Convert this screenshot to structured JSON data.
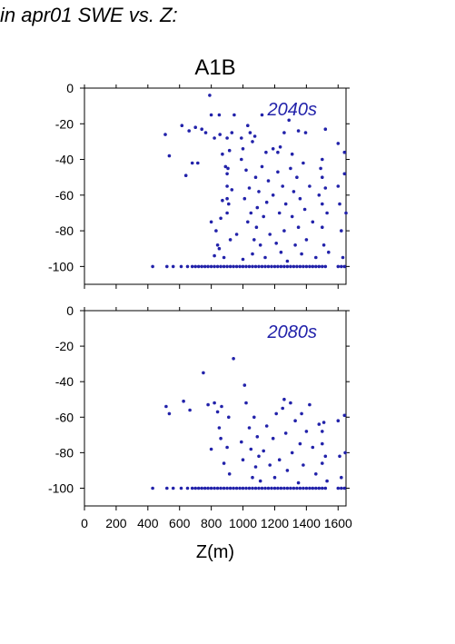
{
  "header": {
    "title": "in apr01 SWE vs. Z:"
  },
  "figure": {
    "scenario": "A1B",
    "xlabel": "Z(m)"
  },
  "colors": {
    "points": "#2222aa",
    "text": "#000000",
    "period": "#2222aa"
  },
  "chart_data": [
    {
      "type": "scatter",
      "title": "A1B",
      "period_label": "2040s",
      "xlabel": "",
      "ylabel": "",
      "xlim": [
        0,
        1650
      ],
      "ylim": [
        -110,
        0
      ],
      "yticks": [
        0,
        -20,
        -40,
        -60,
        -80,
        -100
      ],
      "xticks": [
        0,
        200,
        400,
        600,
        800,
        1000,
        1200,
        1400,
        1600
      ],
      "grid": false,
      "points": [
        [
          430,
          -100
        ],
        [
          520,
          -100
        ],
        [
          560,
          -100
        ],
        [
          610,
          -100
        ],
        [
          650,
          -100
        ],
        [
          680,
          -100
        ],
        [
          700,
          -100
        ],
        [
          720,
          -100
        ],
        [
          740,
          -100
        ],
        [
          760,
          -100
        ],
        [
          780,
          -100
        ],
        [
          800,
          -100
        ],
        [
          820,
          -100
        ],
        [
          840,
          -100
        ],
        [
          860,
          -100
        ],
        [
          880,
          -100
        ],
        [
          900,
          -100
        ],
        [
          920,
          -100
        ],
        [
          940,
          -100
        ],
        [
          960,
          -100
        ],
        [
          980,
          -100
        ],
        [
          1000,
          -100
        ],
        [
          1020,
          -100
        ],
        [
          1040,
          -100
        ],
        [
          1060,
          -100
        ],
        [
          1080,
          -100
        ],
        [
          1100,
          -100
        ],
        [
          1120,
          -100
        ],
        [
          1140,
          -100
        ],
        [
          1160,
          -100
        ],
        [
          1180,
          -100
        ],
        [
          1200,
          -100
        ],
        [
          1220,
          -100
        ],
        [
          1240,
          -100
        ],
        [
          1260,
          -100
        ],
        [
          1280,
          -100
        ],
        [
          1300,
          -100
        ],
        [
          1320,
          -100
        ],
        [
          1340,
          -100
        ],
        [
          1360,
          -100
        ],
        [
          1380,
          -100
        ],
        [
          1400,
          -100
        ],
        [
          1420,
          -100
        ],
        [
          1440,
          -100
        ],
        [
          1460,
          -100
        ],
        [
          1480,
          -100
        ],
        [
          1500,
          -100
        ],
        [
          1520,
          -100
        ],
        [
          1600,
          -100
        ],
        [
          1620,
          -100
        ],
        [
          1640,
          -100
        ],
        [
          510,
          -26
        ],
        [
          535,
          -38
        ],
        [
          615,
          -21
        ],
        [
          640,
          -49
        ],
        [
          660,
          -24
        ],
        [
          680,
          -42
        ],
        [
          700,
          -22
        ],
        [
          715,
          -42
        ],
        [
          740,
          -23
        ],
        [
          765,
          -25
        ],
        [
          790,
          -4
        ],
        [
          800,
          -15
        ],
        [
          820,
          -28
        ],
        [
          850,
          -15
        ],
        [
          855,
          -26
        ],
        [
          870,
          -37
        ],
        [
          900,
          -28
        ],
        [
          915,
          -35
        ],
        [
          930,
          -25
        ],
        [
          945,
          -15
        ],
        [
          990,
          -28
        ],
        [
          1000,
          -34
        ],
        [
          1030,
          -21
        ],
        [
          1045,
          -25
        ],
        [
          1060,
          -30
        ],
        [
          1075,
          -27
        ],
        [
          1120,
          -15
        ],
        [
          1145,
          -36
        ],
        [
          1190,
          -34
        ],
        [
          1220,
          -36
        ],
        [
          1235,
          -33
        ],
        [
          1260,
          -25
        ],
        [
          1290,
          -18
        ],
        [
          1310,
          -37
        ],
        [
          1350,
          -24
        ],
        [
          1395,
          -25
        ],
        [
          1520,
          -23
        ],
        [
          1600,
          -31
        ],
        [
          1640,
          -36
        ],
        [
          800,
          -75
        ],
        [
          820,
          -94
        ],
        [
          830,
          -80
        ],
        [
          840,
          -88
        ],
        [
          850,
          -90
        ],
        [
          860,
          -73
        ],
        [
          870,
          -63
        ],
        [
          880,
          -95
        ],
        [
          890,
          -44
        ],
        [
          900,
          -48
        ],
        [
          900,
          -55
        ],
        [
          900,
          -62
        ],
        [
          900,
          -70
        ],
        [
          905,
          -45
        ],
        [
          910,
          -65
        ],
        [
          920,
          -85
        ],
        [
          930,
          -57
        ],
        [
          960,
          -82
        ],
        [
          990,
          -40
        ],
        [
          1000,
          -96
        ],
        [
          1010,
          -62
        ],
        [
          1020,
          -46
        ],
        [
          1030,
          -75
        ],
        [
          1040,
          -56
        ],
        [
          1050,
          -70
        ],
        [
          1060,
          -93
        ],
        [
          1070,
          -85
        ],
        [
          1080,
          -50
        ],
        [
          1085,
          -78
        ],
        [
          1090,
          -67
        ],
        [
          1100,
          -58
        ],
        [
          1110,
          -88
        ],
        [
          1120,
          -44
        ],
        [
          1130,
          -72
        ],
        [
          1140,
          -95
        ],
        [
          1150,
          -64
        ],
        [
          1160,
          -52
        ],
        [
          1170,
          -82
        ],
        [
          1190,
          -60
        ],
        [
          1210,
          -87
        ],
        [
          1220,
          -47
        ],
        [
          1230,
          -70
        ],
        [
          1240,
          -92
        ],
        [
          1250,
          -55
        ],
        [
          1260,
          -80
        ],
        [
          1270,
          -65
        ],
        [
          1280,
          -97
        ],
        [
          1300,
          -45
        ],
        [
          1310,
          -72
        ],
        [
          1320,
          -58
        ],
        [
          1330,
          -88
        ],
        [
          1340,
          -50
        ],
        [
          1350,
          -78
        ],
        [
          1360,
          -62
        ],
        [
          1370,
          -93
        ],
        [
          1380,
          -42
        ],
        [
          1390,
          -68
        ],
        [
          1400,
          -85
        ],
        [
          1420,
          -55
        ],
        [
          1440,
          -75
        ],
        [
          1460,
          -95
        ],
        [
          1480,
          -60
        ],
        [
          1490,
          -45
        ],
        [
          1500,
          -40
        ],
        [
          1500,
          -50
        ],
        [
          1500,
          -65
        ],
        [
          1500,
          -78
        ],
        [
          1510,
          -88
        ],
        [
          1520,
          -56
        ],
        [
          1530,
          -70
        ],
        [
          1540,
          -92
        ],
        [
          1600,
          -55
        ],
        [
          1610,
          -65
        ],
        [
          1620,
          -80
        ],
        [
          1630,
          -95
        ],
        [
          1640,
          -48
        ],
        [
          1650,
          -70
        ]
      ]
    },
    {
      "type": "scatter",
      "title": "",
      "period_label": "2080s",
      "xlabel": "Z(m)",
      "ylabel": "",
      "xlim": [
        0,
        1650
      ],
      "ylim": [
        -110,
        0
      ],
      "yticks": [
        0,
        -20,
        -40,
        -60,
        -80,
        -100
      ],
      "xticks": [
        0,
        200,
        400,
        600,
        800,
        1000,
        1200,
        1400,
        1600
      ],
      "grid": false,
      "points": [
        [
          430,
          -100
        ],
        [
          520,
          -100
        ],
        [
          560,
          -100
        ],
        [
          610,
          -100
        ],
        [
          650,
          -100
        ],
        [
          680,
          -100
        ],
        [
          700,
          -100
        ],
        [
          720,
          -100
        ],
        [
          740,
          -100
        ],
        [
          760,
          -100
        ],
        [
          780,
          -100
        ],
        [
          800,
          -100
        ],
        [
          820,
          -100
        ],
        [
          840,
          -100
        ],
        [
          860,
          -100
        ],
        [
          880,
          -100
        ],
        [
          900,
          -100
        ],
        [
          920,
          -100
        ],
        [
          940,
          -100
        ],
        [
          960,
          -100
        ],
        [
          980,
          -100
        ],
        [
          1000,
          -100
        ],
        [
          1020,
          -100
        ],
        [
          1040,
          -100
        ],
        [
          1060,
          -100
        ],
        [
          1080,
          -100
        ],
        [
          1100,
          -100
        ],
        [
          1120,
          -100
        ],
        [
          1140,
          -100
        ],
        [
          1160,
          -100
        ],
        [
          1180,
          -100
        ],
        [
          1200,
          -100
        ],
        [
          1220,
          -100
        ],
        [
          1240,
          -100
        ],
        [
          1260,
          -100
        ],
        [
          1280,
          -100
        ],
        [
          1300,
          -100
        ],
        [
          1320,
          -100
        ],
        [
          1340,
          -100
        ],
        [
          1360,
          -100
        ],
        [
          1380,
          -100
        ],
        [
          1400,
          -100
        ],
        [
          1420,
          -100
        ],
        [
          1440,
          -100
        ],
        [
          1460,
          -100
        ],
        [
          1480,
          -100
        ],
        [
          1500,
          -100
        ],
        [
          1520,
          -100
        ],
        [
          1600,
          -100
        ],
        [
          1620,
          -100
        ],
        [
          1640,
          -100
        ],
        [
          515,
          -54
        ],
        [
          535,
          -58
        ],
        [
          625,
          -51
        ],
        [
          665,
          -56
        ],
        [
          750,
          -35
        ],
        [
          780,
          -53
        ],
        [
          800,
          -78
        ],
        [
          820,
          -52
        ],
        [
          840,
          -57
        ],
        [
          850,
          -66
        ],
        [
          860,
          -72
        ],
        [
          865,
          -54
        ],
        [
          880,
          -86
        ],
        [
          900,
          -77
        ],
        [
          910,
          -60
        ],
        [
          915,
          -92
        ],
        [
          940,
          -27
        ],
        [
          990,
          -74
        ],
        [
          1000,
          -84
        ],
        [
          1010,
          -42
        ],
        [
          1020,
          -52
        ],
        [
          1040,
          -66
        ],
        [
          1050,
          -78
        ],
        [
          1060,
          -94
        ],
        [
          1070,
          -60
        ],
        [
          1080,
          -88
        ],
        [
          1090,
          -71
        ],
        [
          1100,
          -82
        ],
        [
          1110,
          -96
        ],
        [
          1130,
          -79
        ],
        [
          1150,
          -65
        ],
        [
          1170,
          -87
        ],
        [
          1190,
          -72
        ],
        [
          1200,
          -94
        ],
        [
          1210,
          -58
        ],
        [
          1230,
          -84
        ],
        [
          1250,
          -55
        ],
        [
          1260,
          -50
        ],
        [
          1270,
          -69
        ],
        [
          1280,
          -90
        ],
        [
          1300,
          -52
        ],
        [
          1310,
          -80
        ],
        [
          1330,
          -62
        ],
        [
          1350,
          -97
        ],
        [
          1360,
          -75
        ],
        [
          1370,
          -58
        ],
        [
          1380,
          -87
        ],
        [
          1400,
          -68
        ],
        [
          1420,
          -53
        ],
        [
          1440,
          -77
        ],
        [
          1460,
          -92
        ],
        [
          1480,
          -64
        ],
        [
          1500,
          -68
        ],
        [
          1500,
          -75
        ],
        [
          1500,
          -86
        ],
        [
          1510,
          -63
        ],
        [
          1520,
          -82
        ],
        [
          1530,
          -96
        ],
        [
          1600,
          -62
        ],
        [
          1610,
          -82
        ],
        [
          1620,
          -94
        ],
        [
          1640,
          -59
        ],
        [
          1645,
          -80
        ]
      ]
    }
  ]
}
